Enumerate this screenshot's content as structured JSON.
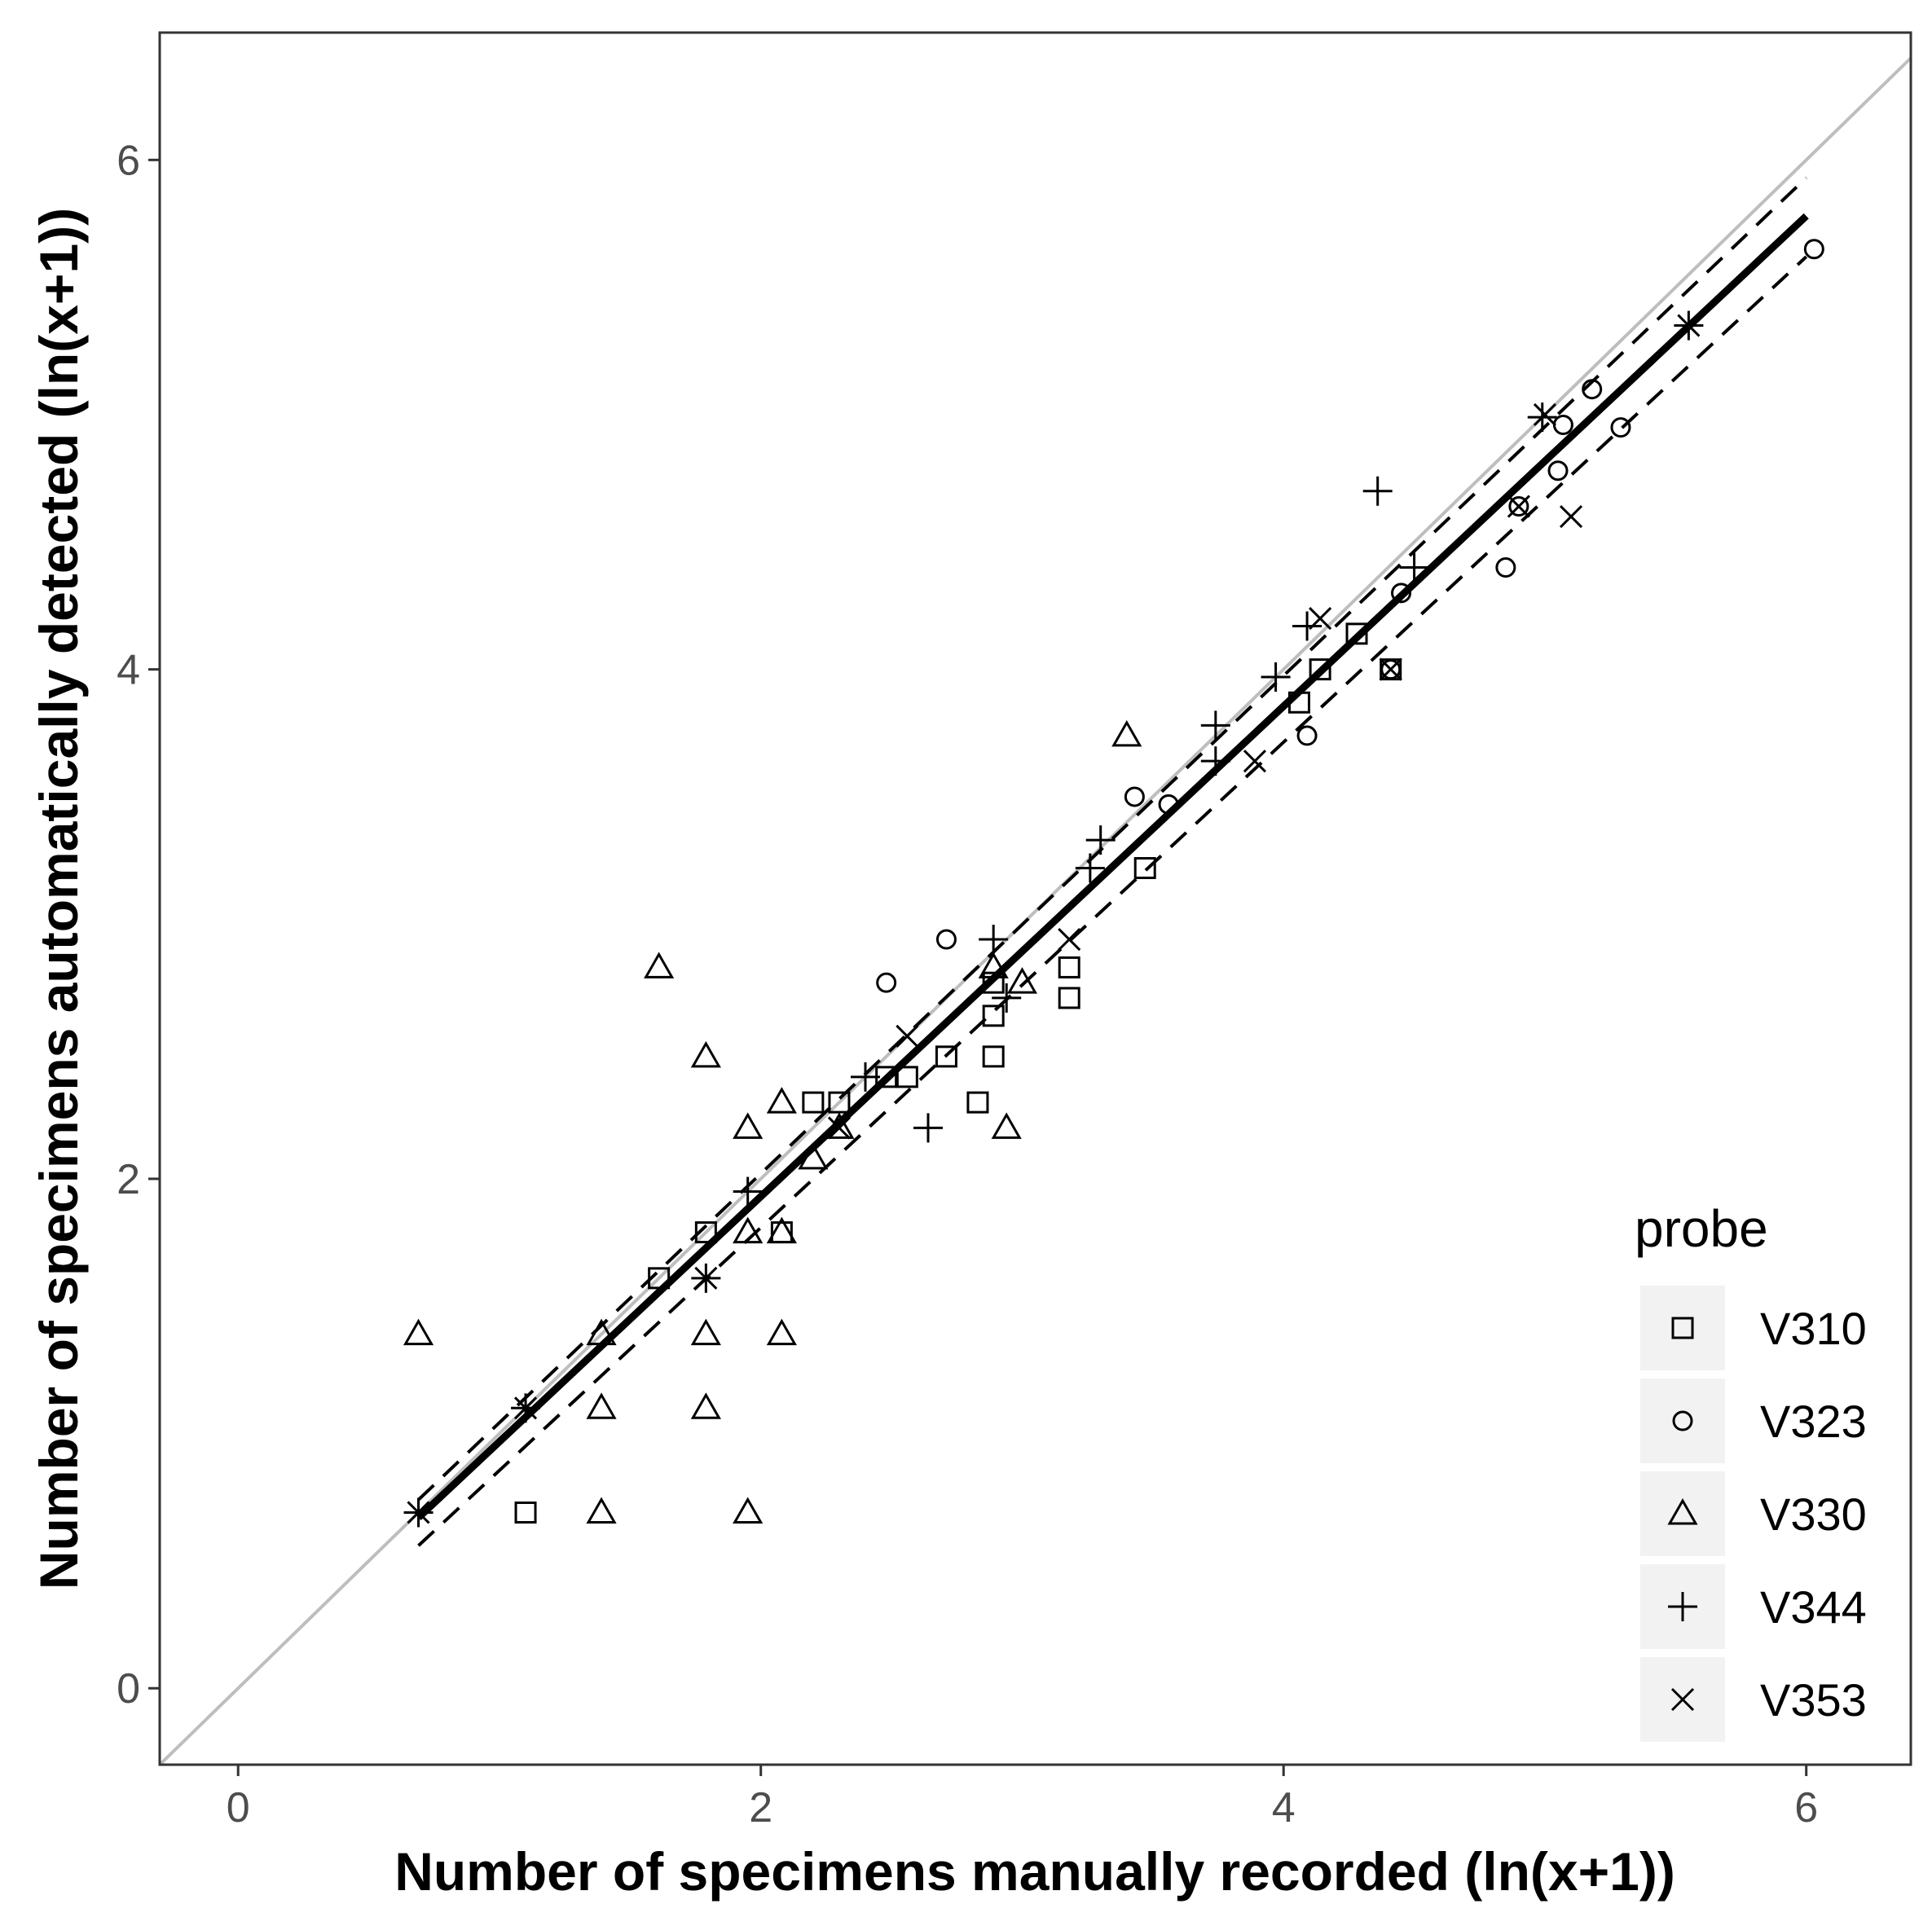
{
  "chart_data": {
    "type": "scatter",
    "title": "",
    "xlabel": "Number of specimens manually recorded (ln(x+1))",
    "ylabel": "Number of specimens automatically detected (ln(x+1))",
    "xlim": [
      -0.3,
      6.4
    ],
    "ylim": [
      -0.3,
      6.5
    ],
    "x_ticks": [
      0,
      2,
      4,
      6
    ],
    "y_ticks": [
      0,
      2,
      4,
      6
    ],
    "x_tick_labels": [
      "0",
      "2",
      "4",
      "6"
    ],
    "y_tick_labels": [
      "0",
      "2",
      "4",
      "6"
    ],
    "grid": false,
    "legend_position": "bottom-right",
    "legend": {
      "title": "probe",
      "entries": [
        {
          "label": "V310",
          "shape": "square"
        },
        {
          "label": "V323",
          "shape": "circle"
        },
        {
          "label": "V330",
          "shape": "triangle"
        },
        {
          "label": "V344",
          "shape": "plus"
        },
        {
          "label": "V353",
          "shape": "cross"
        }
      ]
    },
    "reference_line": {
      "name": "1:1 line",
      "color": "#bebebe",
      "points": [
        [
          -0.3,
          -0.3
        ],
        [
          6.4,
          6.4
        ]
      ]
    },
    "fit_line": {
      "name": "regression fit",
      "color": "#000000",
      "points": [
        [
          0.69,
          0.67
        ],
        [
          6.0,
          5.78
        ]
      ]
    },
    "ci_upper": {
      "name": "upper confidence bound",
      "color": "#000000",
      "points": [
        [
          0.69,
          0.74
        ],
        [
          6.0,
          5.93
        ]
      ]
    },
    "ci_lower": {
      "name": "lower confidence bound",
      "color": "#000000",
      "points": [
        [
          0.69,
          0.56
        ],
        [
          6.0,
          5.62
        ]
      ]
    },
    "series": [
      {
        "name": "V310",
        "shape": "square",
        "points": [
          [
            1.1,
            0.69
          ],
          [
            1.61,
            1.61
          ],
          [
            1.79,
            1.79
          ],
          [
            2.08,
            1.79
          ],
          [
            2.2,
            2.3
          ],
          [
            2.3,
            2.3
          ],
          [
            2.48,
            2.4
          ],
          [
            2.56,
            2.4
          ],
          [
            2.71,
            2.48
          ],
          [
            2.83,
            2.3
          ],
          [
            2.89,
            2.48
          ],
          [
            2.89,
            2.64
          ],
          [
            2.89,
            2.77
          ],
          [
            3.18,
            2.71
          ],
          [
            3.18,
            2.83
          ],
          [
            3.47,
            3.22
          ],
          [
            4.06,
            3.87
          ],
          [
            4.14,
            4.0
          ],
          [
            4.28,
            4.14
          ],
          [
            4.41,
            4.0
          ]
        ]
      },
      {
        "name": "V323",
        "shape": "circle",
        "points": [
          [
            2.48,
            2.77
          ],
          [
            2.71,
            2.94
          ],
          [
            3.43,
            3.5
          ],
          [
            3.56,
            3.47
          ],
          [
            4.09,
            3.74
          ],
          [
            4.45,
            4.3
          ],
          [
            4.85,
            4.4
          ],
          [
            4.9,
            4.64
          ],
          [
            5.05,
            4.78
          ],
          [
            5.07,
            4.96
          ],
          [
            5.18,
            5.1
          ],
          [
            5.29,
            4.95
          ],
          [
            6.03,
            5.65
          ],
          [
            4.41,
            4.0
          ]
        ]
      },
      {
        "name": "V330",
        "shape": "triangle",
        "points": [
          [
            0.69,
            1.39
          ],
          [
            1.39,
            0.69
          ],
          [
            1.39,
            1.1
          ],
          [
            1.39,
            1.39
          ],
          [
            1.61,
            2.83
          ],
          [
            1.79,
            1.1
          ],
          [
            1.79,
            1.39
          ],
          [
            1.79,
            2.48
          ],
          [
            1.95,
            0.69
          ],
          [
            1.95,
            1.79
          ],
          [
            1.95,
            2.2
          ],
          [
            2.08,
            1.39
          ],
          [
            2.08,
            1.79
          ],
          [
            2.08,
            2.3
          ],
          [
            2.2,
            2.08
          ],
          [
            2.3,
            2.2
          ],
          [
            2.89,
            2.83
          ],
          [
            2.94,
            2.2
          ],
          [
            3.0,
            2.77
          ],
          [
            3.4,
            3.74
          ]
        ]
      },
      {
        "name": "V344",
        "shape": "plus",
        "points": [
          [
            0.69,
            0.69
          ],
          [
            1.1,
            1.1
          ],
          [
            1.79,
            1.61
          ],
          [
            1.95,
            1.95
          ],
          [
            2.4,
            2.4
          ],
          [
            2.64,
            2.2
          ],
          [
            2.89,
            2.94
          ],
          [
            2.94,
            2.71
          ],
          [
            3.26,
            3.22
          ],
          [
            3.3,
            3.33
          ],
          [
            3.74,
            3.64
          ],
          [
            3.74,
            3.78
          ],
          [
            3.97,
            3.97
          ],
          [
            4.09,
            4.17
          ],
          [
            4.36,
            4.7
          ],
          [
            4.5,
            4.4
          ],
          [
            4.99,
            4.99
          ],
          [
            5.55,
            5.35
          ]
        ]
      },
      {
        "name": "V353",
        "shape": "cross",
        "points": [
          [
            0.69,
            0.69
          ],
          [
            1.1,
            1.1
          ],
          [
            1.79,
            1.61
          ],
          [
            2.3,
            2.2
          ],
          [
            2.56,
            2.56
          ],
          [
            3.18,
            2.94
          ],
          [
            3.89,
            3.64
          ],
          [
            4.14,
            4.2
          ],
          [
            4.41,
            4.0
          ],
          [
            4.9,
            4.64
          ],
          [
            5.1,
            4.6
          ],
          [
            5.55,
            5.35
          ],
          [
            5.0,
            5.0
          ]
        ]
      }
    ]
  }
}
